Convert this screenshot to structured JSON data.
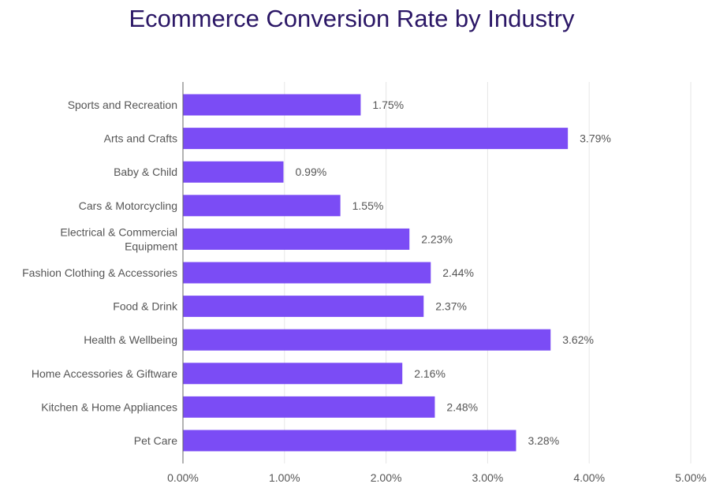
{
  "chart_data": {
    "type": "bar",
    "orientation": "horizontal",
    "title": "Ecommerce Conversion Rate by Industry",
    "xlabel": "",
    "ylabel": "",
    "categories": [
      [
        "Sports and Recreation"
      ],
      [
        "Arts and Crafts"
      ],
      [
        "Baby & Child"
      ],
      [
        "Cars & Motorcycling"
      ],
      [
        "Electrical & Commercial",
        "Equipment"
      ],
      [
        "Fashion Clothing & Accessories"
      ],
      [
        "Food & Drink"
      ],
      [
        "Health & Wellbeing"
      ],
      [
        "Home Accessories & Giftware"
      ],
      [
        "Kitchen & Home Appliances"
      ],
      [
        "Pet Care"
      ]
    ],
    "values": [
      1.75,
      3.79,
      0.99,
      1.55,
      2.23,
      2.44,
      2.37,
      3.62,
      2.16,
      2.48,
      3.28
    ],
    "value_labels": [
      "1.75%",
      "3.79%",
      "0.99%",
      "1.55%",
      "2.23%",
      "2.44%",
      "2.37%",
      "3.62%",
      "2.16%",
      "2.48%",
      "3.28%"
    ],
    "xlim": [
      0,
      5
    ],
    "xticks": [
      0,
      1,
      2,
      3,
      4,
      5
    ],
    "xtick_labels": [
      "0.00%",
      "1.00%",
      "2.00%",
      "3.00%",
      "4.00%",
      "5.00%"
    ],
    "grid": "vertical",
    "legend": "none",
    "colors": {
      "bar": "#7b4cf5",
      "title": "#2b1766",
      "grid": "#e6e6e6",
      "axis": "#666666"
    }
  }
}
